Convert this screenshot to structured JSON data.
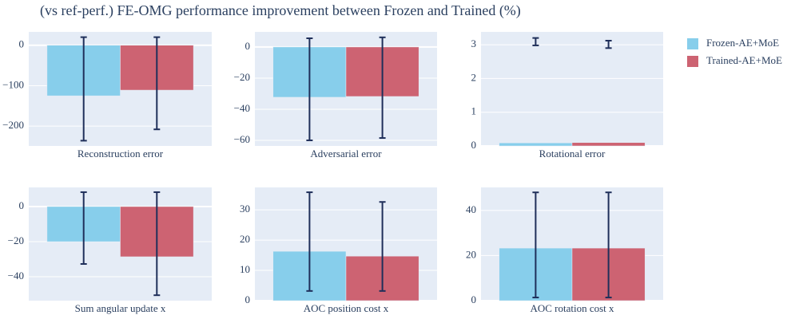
{
  "title": "(vs ref-perf.) FE-OMG performance improvement between Frozen and Trained (%)",
  "chart_data": [
    {
      "type": "bar",
      "categories": [
        "Reconstruction error"
      ],
      "series": [
        {
          "name": "Frozen-AE+MoE",
          "color": "#87ceeb",
          "values": [
            -125
          ],
          "error_low": [
            -236
          ],
          "error_high": [
            20
          ]
        },
        {
          "name": "Trained-AE+MoE",
          "color": "#cd6372",
          "values": [
            -111
          ],
          "error_low": [
            -208
          ],
          "error_high": [
            20
          ]
        }
      ],
      "ylim": [
        -249,
        33
      ],
      "yticks": [
        {
          "value": -200,
          "label": "−200"
        },
        {
          "value": -100,
          "label": "−100"
        },
        0
      ],
      "grid": true
    },
    {
      "type": "bar",
      "categories": [
        "Adversarial error"
      ],
      "series": [
        {
          "name": "Frozen-AE+MoE",
          "color": "#87ceeb",
          "values": [
            -32.3
          ],
          "error_low": [
            -60
          ],
          "error_high": [
            5.6
          ]
        },
        {
          "name": "Trained-AE+MoE",
          "color": "#cd6372",
          "values": [
            -31.8
          ],
          "error_low": [
            -58.5
          ],
          "error_high": [
            6.2
          ]
        }
      ],
      "ylim": [
        -63.6,
        9.7
      ],
      "yticks": [
        {
          "value": -60,
          "label": "−60"
        },
        {
          "value": -40,
          "label": "−40"
        },
        {
          "value": -20,
          "label": "−20"
        },
        0
      ],
      "grid": true
    },
    {
      "type": "bar",
      "categories": [
        "Rotational error"
      ],
      "series": [
        {
          "name": "Frozen-AE+MoE",
          "color": "#87ceeb",
          "values": [
            0.09
          ],
          "error_low": [
            2.98
          ],
          "error_high": [
            3.2
          ]
        },
        {
          "name": "Trained-AE+MoE",
          "color": "#cd6372",
          "values": [
            0.1
          ],
          "error_low": [
            2.9
          ],
          "error_high": [
            3.12
          ]
        }
      ],
      "ylim": [
        0,
        3.38
      ],
      "yticks": [
        0,
        1,
        2,
        3
      ],
      "grid": true
    },
    {
      "type": "bar",
      "categories": [
        "Sum angular update x"
      ],
      "series": [
        {
          "name": "Frozen-AE+MoE",
          "color": "#87ceeb",
          "values": [
            -20
          ],
          "error_low": [
            -32.7
          ],
          "error_high": [
            8.2
          ]
        },
        {
          "name": "Trained-AE+MoE",
          "color": "#cd6372",
          "values": [
            -28.6
          ],
          "error_low": [
            -50.5
          ],
          "error_high": [
            8.2
          ]
        }
      ],
      "ylim": [
        -53.6,
        10.9
      ],
      "yticks": [
        {
          "value": -40,
          "label": "−40"
        },
        {
          "value": -20,
          "label": "−20"
        },
        0
      ],
      "grid": true
    },
    {
      "type": "bar",
      "categories": [
        "AOC position cost x"
      ],
      "series": [
        {
          "name": "Frozen-AE+MoE",
          "color": "#87ceeb",
          "values": [
            16.3
          ],
          "error_low": [
            3.2
          ],
          "error_high": [
            35.8
          ]
        },
        {
          "name": "Trained-AE+MoE",
          "color": "#cd6372",
          "values": [
            14.7
          ],
          "error_low": [
            3.2
          ],
          "error_high": [
            32.6
          ]
        }
      ],
      "ylim": [
        0,
        37.4
      ],
      "yticks": [
        0,
        10,
        20,
        30
      ],
      "grid": true
    },
    {
      "type": "bar",
      "categories": [
        "AOC rotation cost x"
      ],
      "series": [
        {
          "name": "Frozen-AE+MoE",
          "color": "#87ceeb",
          "values": [
            23.3
          ],
          "error_low": [
            1.4
          ],
          "error_high": [
            48
          ]
        },
        {
          "name": "Trained-AE+MoE",
          "color": "#cd6372",
          "values": [
            23.3
          ],
          "error_low": [
            1.4
          ],
          "error_high": [
            48
          ]
        }
      ],
      "ylim": [
        0,
        50.2
      ],
      "yticks": [
        0,
        20,
        40
      ],
      "grid": true
    }
  ]
}
